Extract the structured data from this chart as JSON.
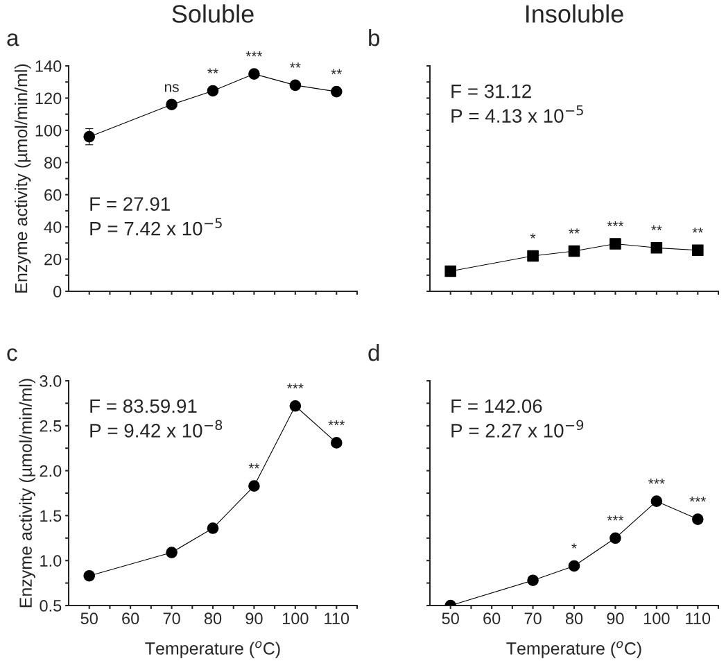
{
  "chart_data": [
    {
      "type": "line",
      "title": "a",
      "subtitle": "Soluble",
      "ylabel": "Enzyme activity (µmol/min/ml)",
      "x": [
        50,
        70,
        80,
        90,
        100,
        110
      ],
      "series": [
        {
          "color": "#000000",
          "values": [
            96,
            116,
            124.5,
            135,
            128,
            124
          ],
          "errors": [
            5,
            null,
            null,
            null,
            null,
            null
          ]
        }
      ],
      "xlim": [
        45,
        115
      ],
      "xticks": [
        50,
        {
          "value": 55,
          "label": null
        },
        60,
        {
          "value": 65,
          "label": null
        },
        70,
        {
          "value": 75,
          "label": null
        },
        80,
        {
          "value": 85,
          "label": null
        },
        90,
        {
          "value": 95,
          "label": null
        },
        100,
        {
          "value": 105,
          "label": null
        },
        110,
        {
          "value": 115,
          "label": null
        }
      ],
      "ylim": [
        0,
        140
      ],
      "yticks": [
        0,
        {
          "value": 10,
          "label": null
        },
        20,
        {
          "value": 30,
          "label": null
        },
        40,
        {
          "value": 50,
          "label": null
        },
        60,
        {
          "value": 70,
          "label": null
        },
        80,
        {
          "value": 90,
          "label": null
        },
        100,
        {
          "value": 110,
          "label": null
        },
        120,
        {
          "value": 130,
          "label": null
        },
        140
      ],
      "tick_labels": "y",
      "marker": "circle",
      "line_style": "solid",
      "grid": false,
      "annotations": [
        {
          "text": "ns",
          "x": 70,
          "y": 116
        },
        {
          "text": "**",
          "x": 80,
          "y": 124.5
        },
        {
          "text": "***",
          "x": 90,
          "y": 135
        },
        {
          "text": "**",
          "x": 100,
          "y": 128
        },
        {
          "text": "**",
          "x": 110,
          "y": 124
        },
        "F = 27.91",
        "P = 7.42 x 10$^{−5}$"
      ]
    },
    {
      "type": "line",
      "title": "b",
      "subtitle": "Insoluble",
      "x": [
        50,
        70,
        80,
        90,
        100,
        110
      ],
      "series": [
        {
          "color": "#000000",
          "values": [
            12.5,
            22,
            25,
            29.5,
            27,
            25.5
          ]
        }
      ],
      "xlim": [
        45,
        115
      ],
      "xticks": [
        50,
        {
          "value": 55,
          "label": null
        },
        60,
        {
          "value": 65,
          "label": null
        },
        70,
        {
          "value": 75,
          "label": null
        },
        80,
        {
          "value": 85,
          "label": null
        },
        90,
        {
          "value": 95,
          "label": null
        },
        100,
        {
          "value": 105,
          "label": null
        },
        110,
        {
          "value": 115,
          "label": null
        }
      ],
      "ylim": [
        0,
        140
      ],
      "yticks": [
        0,
        {
          "value": 10,
          "label": null
        },
        20,
        {
          "value": 30,
          "label": null
        },
        40,
        {
          "value": 50,
          "label": null
        },
        60,
        {
          "value": 70,
          "label": null
        },
        80,
        {
          "value": 90,
          "label": null
        },
        100,
        {
          "value": 110,
          "label": null
        },
        120,
        {
          "value": 130,
          "label": null
        },
        140
      ],
      "tick_labels": false,
      "marker": "square",
      "line_style": "solid",
      "grid": false,
      "annotations": [
        {
          "text": "*",
          "x": 70,
          "y": 22
        },
        {
          "text": "**",
          "x": 80,
          "y": 25
        },
        {
          "text": "***",
          "x": 90,
          "y": 29.5
        },
        {
          "text": "**",
          "x": 100,
          "y": 27
        },
        {
          "text": "**",
          "x": 110,
          "y": 25.5
        },
        "F = 31.12",
        "P = 4.13 x 10$^{−5}$"
      ]
    },
    {
      "type": "line",
      "title": "c",
      "xlabel": "Temperature ($^{o}$C)",
      "ylabel": "Enzyme activity (µmol/min/ml)",
      "x": [
        50,
        70,
        80,
        90,
        100,
        110
      ],
      "series": [
        {
          "color": "#000000",
          "values": [
            0.83,
            1.09,
            1.36,
            1.83,
            2.72,
            2.31
          ]
        }
      ],
      "xlim": [
        45,
        115
      ],
      "xticks": [
        50,
        {
          "value": 55,
          "label": null
        },
        60,
        {
          "value": 65,
          "label": null
        },
        70,
        {
          "value": 75,
          "label": null
        },
        80,
        {
          "value": 85,
          "label": null
        },
        90,
        {
          "value": 95,
          "label": null
        },
        100,
        {
          "value": 105,
          "label": null
        },
        110,
        {
          "value": 115,
          "label": null
        }
      ],
      "ylim": [
        0.5,
        3.0
      ],
      "yticks": [
        {
          "value": 0.5,
          "label": "0.5"
        },
        {
          "value": 0.75,
          "label": null
        },
        {
          "value": 1.0,
          "label": "1.0"
        },
        {
          "value": 1.25,
          "label": null
        },
        {
          "value": 1.5,
          "label": "1.5"
        },
        {
          "value": 1.75,
          "label": null
        },
        {
          "value": 2.0,
          "label": "2.0"
        },
        {
          "value": 2.25,
          "label": null
        },
        {
          "value": 2.5,
          "label": "2.5"
        },
        {
          "value": 2.75,
          "label": null
        },
        {
          "value": 3.0,
          "label": "3.0"
        }
      ],
      "marker": "circle",
      "line_style": "solid",
      "grid": false,
      "annotations": [
        {
          "text": "**",
          "x": 90,
          "y": 1.83
        },
        {
          "text": "***",
          "x": 100,
          "y": 2.72
        },
        {
          "text": "***",
          "x": 110,
          "y": 2.31
        },
        "F = 83.59.91",
        "P = 9.42 x 10$^{−8}$"
      ]
    },
    {
      "type": "line",
      "title": "d",
      "xlabel": "Temperature ($^{o}$C)",
      "x": [
        50,
        70,
        80,
        90,
        100,
        110
      ],
      "series": [
        {
          "color": "#000000",
          "values": [
            0.5,
            0.78,
            0.94,
            1.25,
            1.66,
            1.46
          ]
        }
      ],
      "xlim": [
        45,
        115
      ],
      "xticks": [
        50,
        {
          "value": 55,
          "label": null
        },
        60,
        {
          "value": 65,
          "label": null
        },
        70,
        {
          "value": 75,
          "label": null
        },
        80,
        {
          "value": 85,
          "label": null
        },
        90,
        {
          "value": 95,
          "label": null
        },
        100,
        {
          "value": 105,
          "label": null
        },
        110,
        {
          "value": 115,
          "label": null
        }
      ],
      "ylim": [
        0.5,
        3.0
      ],
      "yticks": [
        0.5,
        {
          "value": 0.75,
          "label": null
        },
        1.0,
        {
          "value": 1.25,
          "label": null
        },
        1.5,
        {
          "value": 1.75,
          "label": null
        },
        2.0,
        {
          "value": 2.25,
          "label": null
        },
        2.5,
        {
          "value": 2.75,
          "label": null
        },
        3.0
      ],
      "tick_labels": "x",
      "marker": "circle",
      "line_style": "solid",
      "grid": false,
      "annotations": [
        {
          "text": "*",
          "x": 80,
          "y": 0.94
        },
        {
          "text": "***",
          "x": 90,
          "y": 1.25
        },
        {
          "text": "***",
          "x": 100,
          "y": 1.66
        },
        {
          "text": "***",
          "x": 110,
          "y": 1.46
        },
        "F = 142.06",
        "P = 2.27 x 10$^{−9}$"
      ]
    }
  ]
}
